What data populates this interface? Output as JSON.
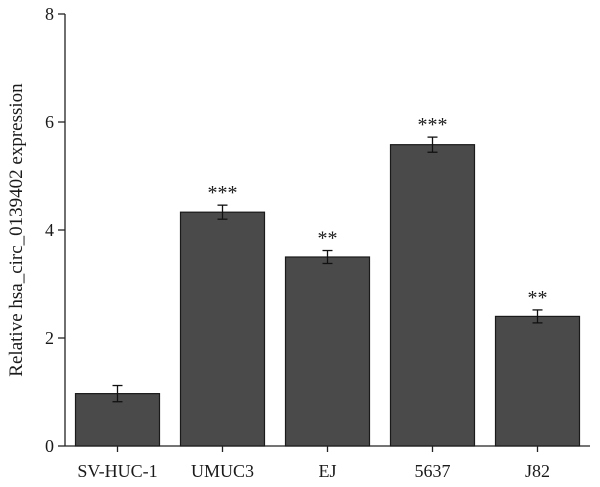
{
  "chart_data": {
    "type": "bar",
    "title": "",
    "xlabel": "",
    "ylabel": "Relative hsa_circ_0139402 expression",
    "ylim": [
      0,
      8
    ],
    "yticks": [
      0,
      2,
      4,
      6,
      8
    ],
    "categories": [
      "SV-HUC-1",
      "UMUC3",
      "EJ",
      "5637",
      "J82"
    ],
    "values": [
      0.97,
      4.33,
      3.5,
      5.58,
      2.4
    ],
    "errors": [
      0.15,
      0.13,
      0.12,
      0.14,
      0.12
    ],
    "significance": [
      "",
      "***",
      "**",
      "***",
      "**"
    ],
    "bar_color": "#4a4a4a",
    "grid": false,
    "legend": "none"
  }
}
